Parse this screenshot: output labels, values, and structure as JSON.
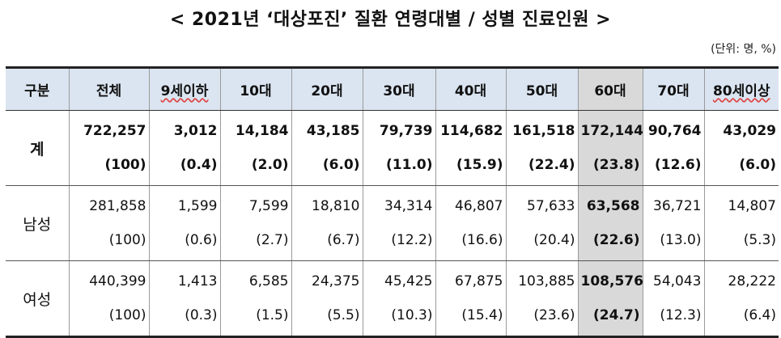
{
  "title": "< 2021년 ‘대상포진’ 질환 연령대별 / 성별 진료인원 >",
  "unit_note": "(단위: 명, %)",
  "headers": [
    "구분",
    "전체",
    "9세이하",
    "10대",
    "20대",
    "30대",
    "40대",
    "50대",
    "60대",
    "70대",
    "80세이상"
  ],
  "highlight_column": "60대",
  "highlight_color": "#d9d9d9",
  "header_bg": "#dbe5f1",
  "rows": [
    {
      "label": "계",
      "counts": [
        "722,257",
        "3,012",
        "14,184",
        "43,185",
        "79,739",
        "114,682",
        "161,518",
        "172,144",
        "90,764",
        "43,029"
      ],
      "shares": [
        "(100)",
        "(0.4)",
        "(2.0)",
        "(6.0)",
        "(11.0)",
        "(15.9)",
        "(22.4)",
        "(23.8)",
        "(12.6)",
        "(6.0)"
      ]
    },
    {
      "label": "남성",
      "counts": [
        "281,858",
        "1,599",
        "7,599",
        "18,810",
        "34,314",
        "46,807",
        "57,633",
        "63,568",
        "36,721",
        "14,807"
      ],
      "shares": [
        "(100)",
        "(0.6)",
        "(2.7)",
        "(6.7)",
        "(12.2)",
        "(16.6)",
        "(20.4)",
        "(22.6)",
        "(13.0)",
        "(5.3)"
      ]
    },
    {
      "label": "여성",
      "counts": [
        "440,399",
        "1,413",
        "6,585",
        "24,375",
        "45,425",
        "67,875",
        "103,885",
        "108,576",
        "54,043",
        "28,222"
      ],
      "shares": [
        "(100)",
        "(0.3)",
        "(1.5)",
        "(5.5)",
        "(10.3)",
        "(15.4)",
        "(23.6)",
        "(24.7)",
        "(12.3)",
        "(6.4)"
      ]
    }
  ]
}
